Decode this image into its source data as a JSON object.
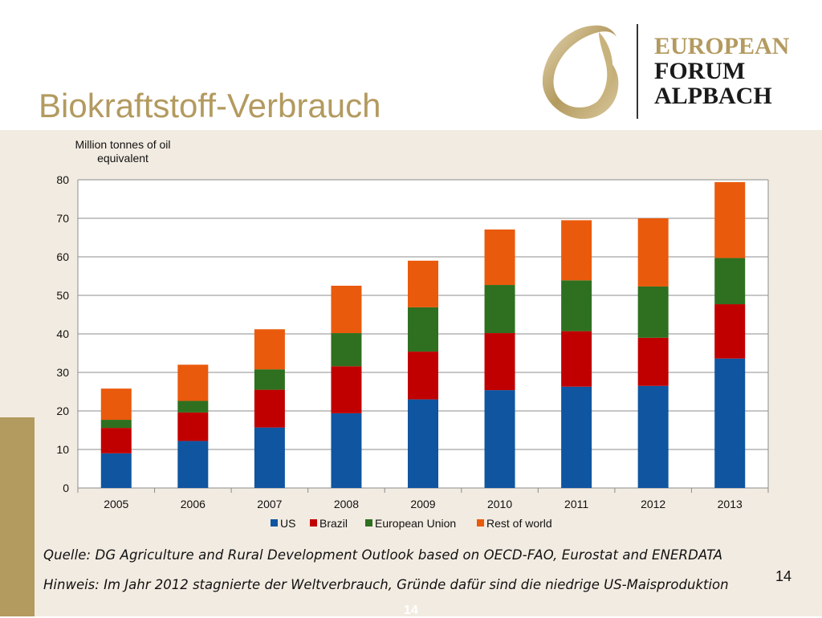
{
  "slide": {
    "title": "Biokraftstoff-Verbrauch",
    "logo": {
      "line1": "EUROPEAN",
      "line2": "FORUM",
      "line3": "ALPBACH"
    },
    "source": "Quelle: DG Agriculture and Rural Development Outlook based on OECD-FAO, Eurostat and ENERDATA",
    "note": "Hinweis: Im Jahr 2012 stagnierte der Weltverbrauch, Gründe dafür sind die niedrige US-Maisproduktion",
    "page_number": "14",
    "page_number_ghost": "14"
  },
  "colors": {
    "gold": "#b39a5f",
    "background": "#f2ebe1"
  },
  "chart_data": {
    "type": "bar",
    "stacked": true,
    "title": "",
    "ylabel": "Million tonnes of oil equivalent",
    "xlabel": "",
    "ylim": [
      0,
      80
    ],
    "yticks": [
      0,
      10,
      20,
      30,
      40,
      50,
      60,
      70,
      80
    ],
    "grid": true,
    "legend_position": "bottom",
    "categories": [
      "2005",
      "2006",
      "2007",
      "2008",
      "2009",
      "2010",
      "2011",
      "2012",
      "2013"
    ],
    "series": [
      {
        "name": "US",
        "color": "#0f55a0",
        "values": [
          9.0,
          12.2,
          15.7,
          19.4,
          23.0,
          25.4,
          26.3,
          26.5,
          33.6
        ]
      },
      {
        "name": "Brazil",
        "color": "#c00000",
        "values": [
          6.6,
          7.4,
          9.8,
          12.2,
          12.4,
          14.8,
          14.4,
          12.5,
          14.1
        ]
      },
      {
        "name": "European Union",
        "color": "#2e7020",
        "values": [
          2.1,
          3.0,
          5.3,
          8.6,
          11.5,
          12.5,
          13.2,
          13.3,
          12.0
        ]
      },
      {
        "name": "Rest of world",
        "color": "#ea5a0c",
        "values": [
          8.1,
          9.4,
          10.4,
          12.3,
          12.1,
          14.4,
          15.6,
          17.7,
          19.7
        ]
      }
    ]
  }
}
